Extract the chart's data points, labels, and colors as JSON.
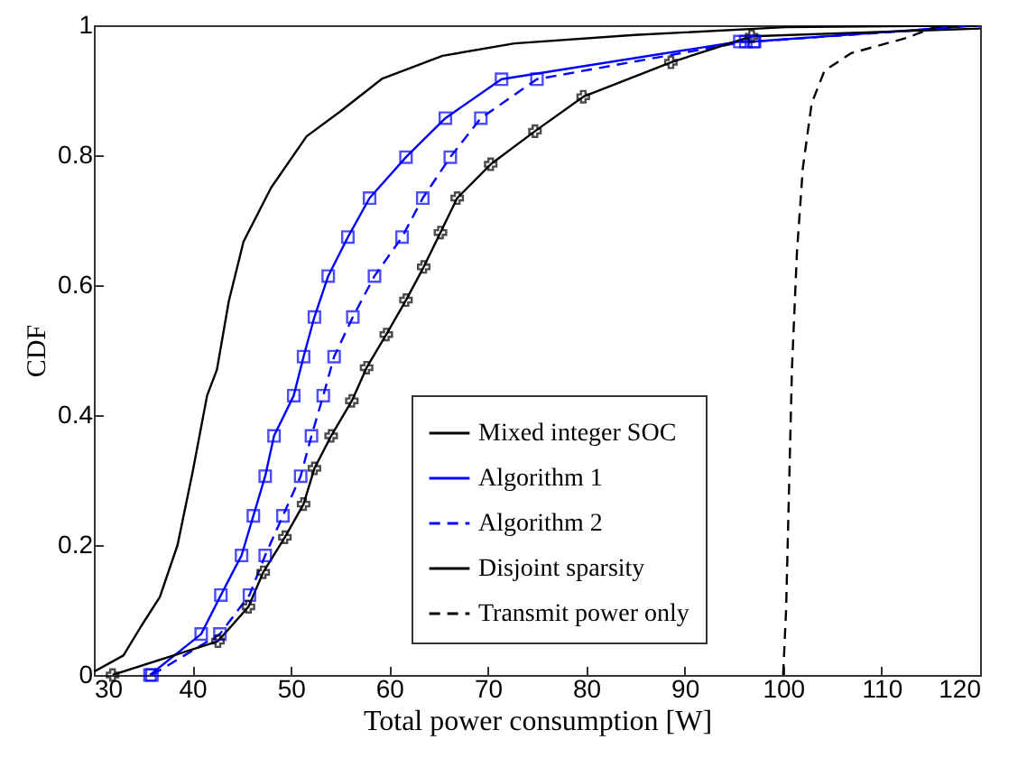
{
  "chart_data": {
    "type": "line",
    "xlabel": "Total power consumption [W]",
    "ylabel": "CDF",
    "xlim": [
      30,
      120
    ],
    "ylim": [
      0,
      1
    ],
    "xticks": [
      30,
      40,
      50,
      60,
      70,
      80,
      90,
      100,
      110,
      120
    ],
    "yticks": [
      0,
      0.2,
      0.4,
      0.6,
      0.8,
      1
    ],
    "legend": "bottom right",
    "grid": false,
    "series": [
      {
        "name": "Mixed integer SOC",
        "color": "#000000",
        "line_style": "solid",
        "marker": "none",
        "x": [
          30,
          33,
          34.8,
          36.7,
          38.5,
          40,
          41.5,
          42.5,
          43.7,
          45.2,
          48,
          51.6,
          55,
          59.3,
          65.4,
          72.7,
          84.9,
          100.2,
          120
        ],
        "values": [
          0.005,
          0.03,
          0.075,
          0.12,
          0.2,
          0.31,
          0.43,
          0.47,
          0.575,
          0.667,
          0.75,
          0.829,
          0.867,
          0.918,
          0.953,
          0.972,
          0.985,
          0.997,
          1
        ]
      },
      {
        "name": "Algorithm 1",
        "color": "#0000ff",
        "line_style": "solid",
        "marker": "square",
        "x": [
          35.7,
          40.9,
          42.9,
          45,
          46.2,
          47.4,
          48.3,
          50.3,
          51.3,
          52.4,
          53.8,
          55.8,
          58,
          61.7,
          65.7,
          71.4,
          95.6,
          97,
          120
        ],
        "values": [
          0,
          0.063,
          0.123,
          0.184,
          0.245,
          0.306,
          0.368,
          0.43,
          0.49,
          0.551,
          0.614,
          0.674,
          0.734,
          0.797,
          0.857,
          0.917,
          0.975,
          0.975,
          1
        ]
      },
      {
        "name": "Algorithm 2",
        "color": "#0000ff",
        "line_style": "dashed",
        "marker": "square",
        "x": [
          35.9,
          42.8,
          45.8,
          47.4,
          49.2,
          51,
          52.1,
          53.3,
          54.4,
          56.3,
          58.5,
          61.3,
          63.4,
          66.2,
          69.3,
          75,
          96.2,
          97.1,
          118
        ],
        "values": [
          0,
          0.063,
          0.123,
          0.184,
          0.245,
          0.306,
          0.368,
          0.43,
          0.49,
          0.551,
          0.614,
          0.674,
          0.734,
          0.797,
          0.857,
          0.917,
          0.975,
          0.975,
          0.997
        ]
      },
      {
        "name": "Disjoint sparsity",
        "color": "#000000",
        "line_style": "solid",
        "marker": "cross",
        "x": [
          31.9,
          42.6,
          45.7,
          47.2,
          49.4,
          51.3,
          52.4,
          54.1,
          56.2,
          57.7,
          59.7,
          61.7,
          63.5,
          65.2,
          66.9,
          70.3,
          74.8,
          79.7,
          88.6,
          96.8,
          120
        ],
        "values": [
          0,
          0.052,
          0.105,
          0.158,
          0.212,
          0.263,
          0.318,
          0.368,
          0.422,
          0.473,
          0.524,
          0.577,
          0.628,
          0.681,
          0.734,
          0.786,
          0.837,
          0.89,
          0.943,
          0.983,
          0.995
        ]
      },
      {
        "name": "Transmit power only",
        "color": "#000000",
        "line_style": "dashed",
        "marker": "none",
        "x": [
          100,
          100.3,
          100.9,
          101.4,
          102,
          102.9,
          104.2,
          106.9,
          112.4,
          115.4,
          120
        ],
        "values": [
          0,
          0.1,
          0.473,
          0.65,
          0.78,
          0.88,
          0.93,
          0.957,
          0.98,
          0.997,
          1
        ]
      }
    ]
  }
}
